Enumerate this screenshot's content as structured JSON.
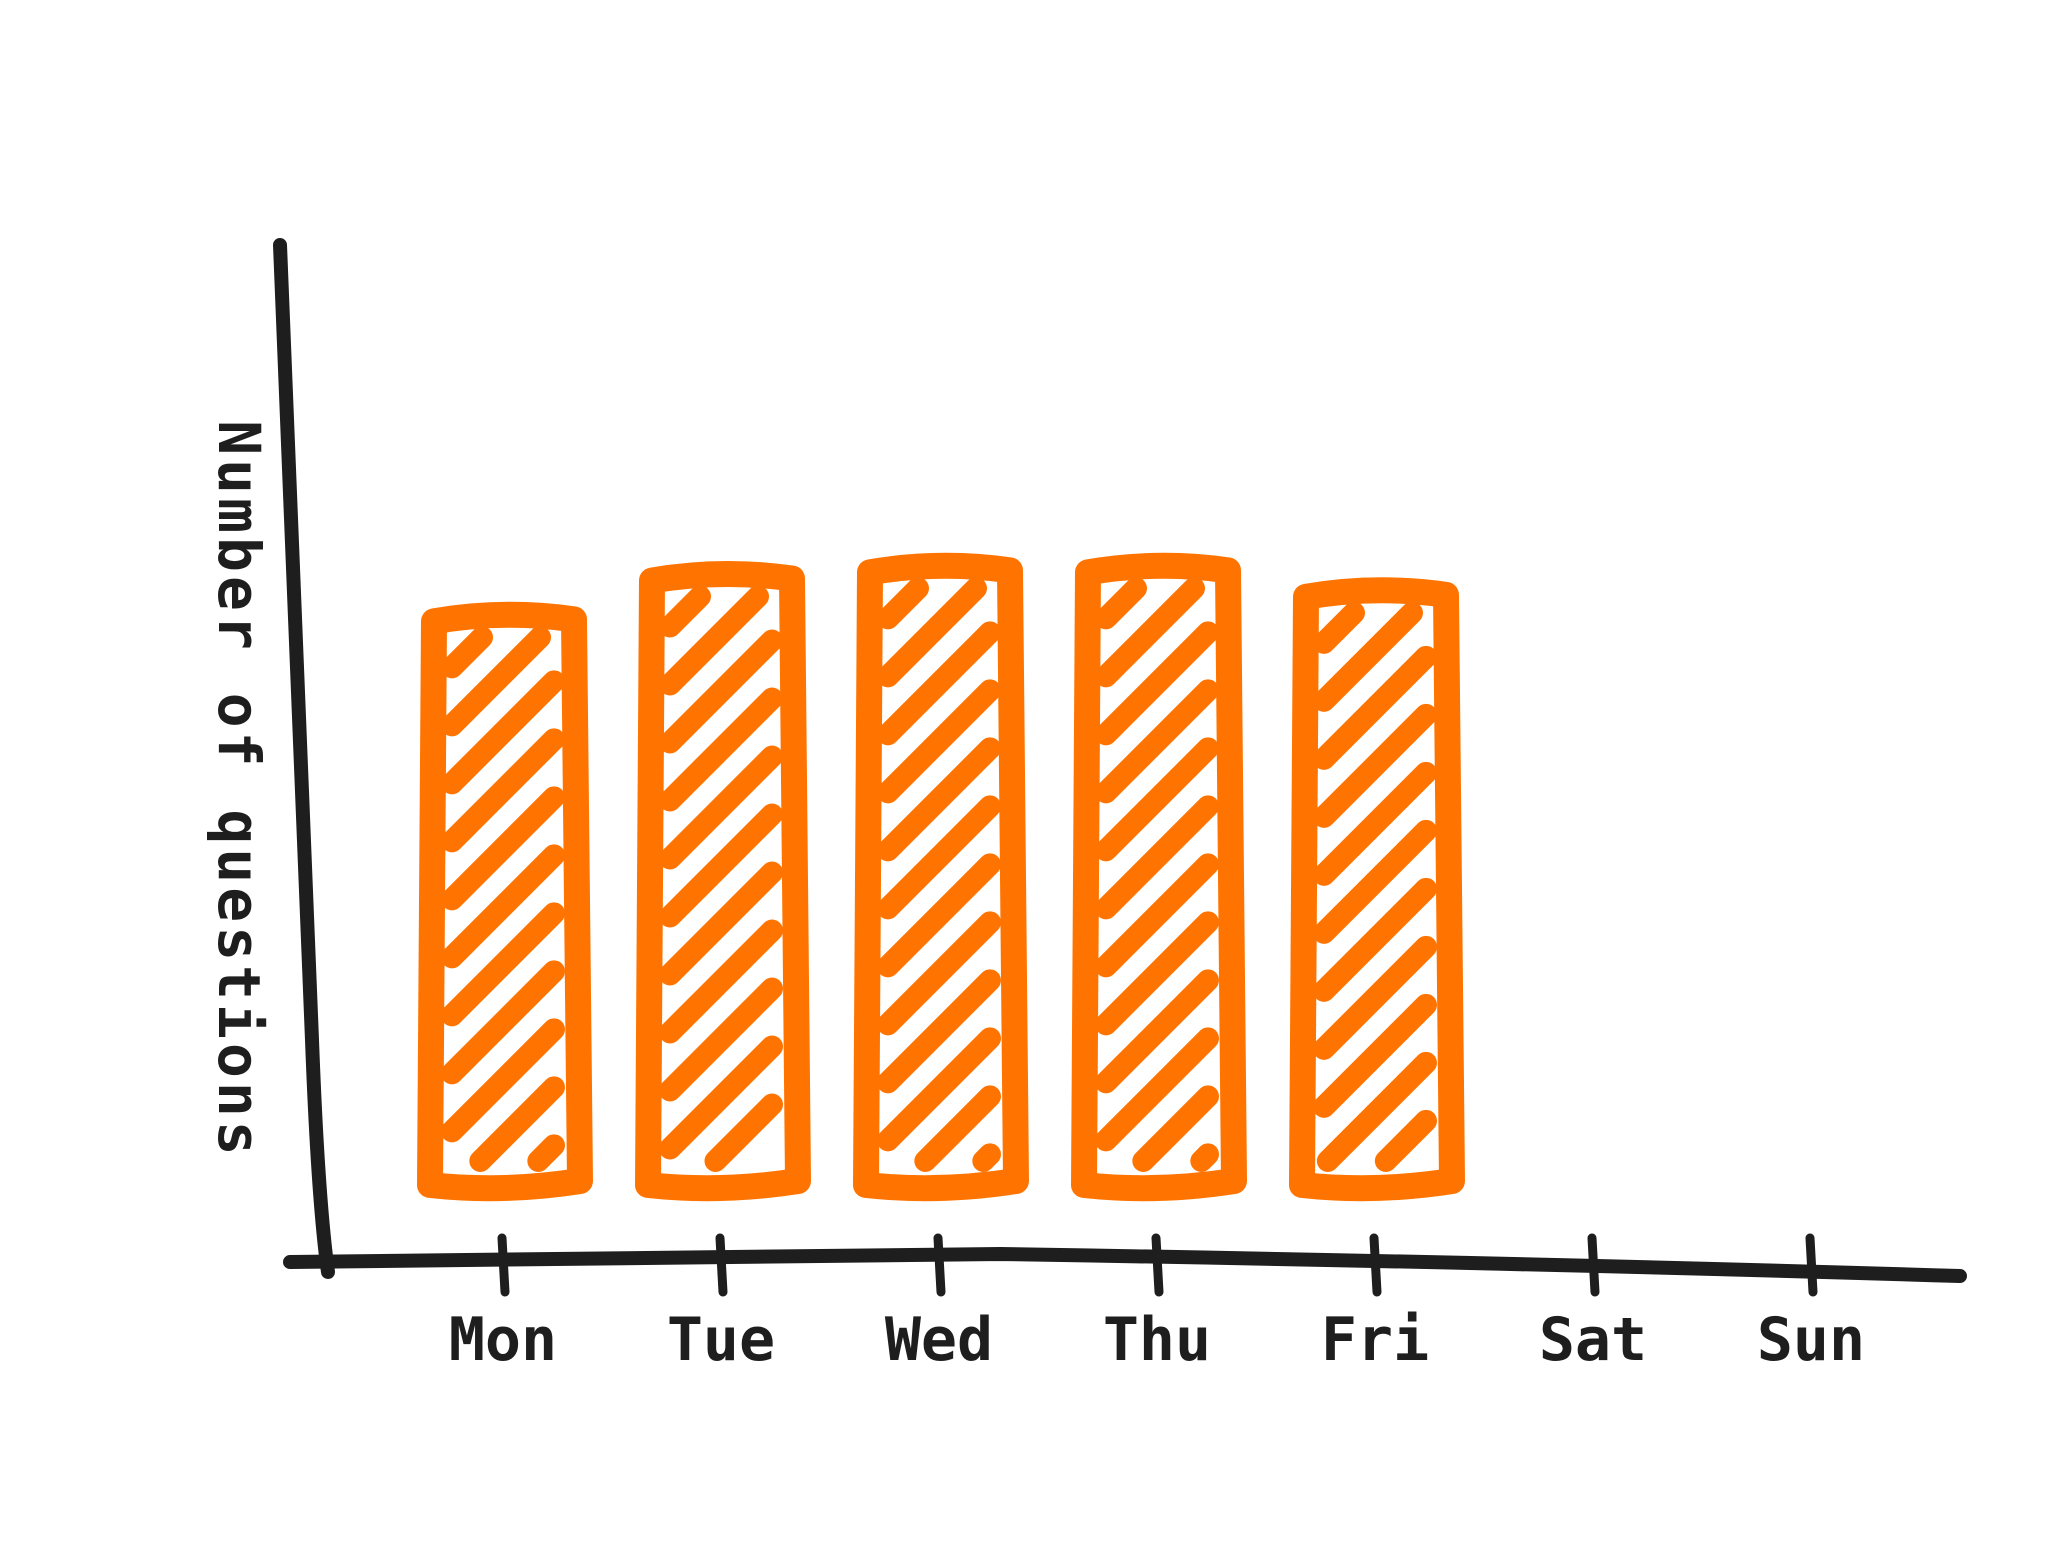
{
  "chart_data": {
    "type": "bar",
    "title": "",
    "xlabel": "",
    "ylabel": "Number of questions",
    "categories": [
      "Mon",
      "Tue",
      "Wed",
      "Thu",
      "Fri",
      "Sat",
      "Sun"
    ],
    "values": [
      7.0,
      7.5,
      7.6,
      7.6,
      7.3,
      0,
      0
    ],
    "ylim": [
      0,
      12
    ],
    "grid": false,
    "legend": "none",
    "colors": {
      "bar": "#ff7400",
      "axis": "#1e1e1e"
    }
  }
}
